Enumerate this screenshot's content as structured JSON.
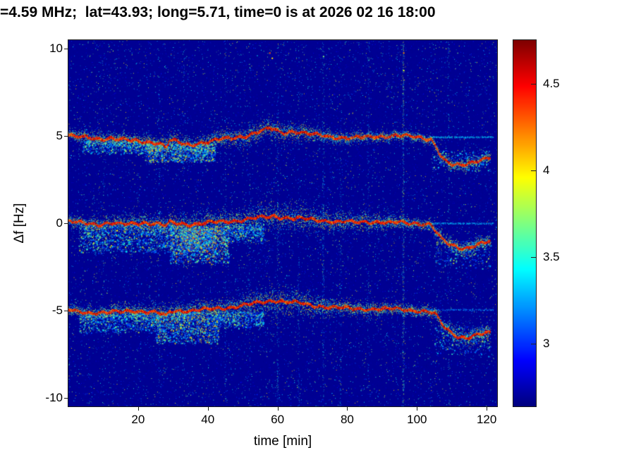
{
  "title": "=4.59 MHz;  lat=43.93; long=5.71, time=0 is at 2026 02 16 18:00",
  "chart_data": {
    "type": "heatmap",
    "subtype": "doppler-spectrogram",
    "colormap": "jet",
    "title": "=4.59 MHz;  lat=43.93; long=5.71, time=0 is at 2026 02 16 18:00",
    "xlabel": "time [min]",
    "ylabel": "Δf [Hz]",
    "xlim": [
      0,
      123
    ],
    "ylim": [
      -10.5,
      10.5
    ],
    "x_ticks": [
      20,
      40,
      60,
      80,
      100,
      120
    ],
    "y_ticks": [
      10,
      5,
      0,
      -5,
      -10
    ],
    "grid": false,
    "background_value": 2.68,
    "colorbar": {
      "colormap": "jet",
      "range": [
        2.64,
        4.75
      ],
      "ticks": [
        4.5,
        4,
        3.5,
        3
      ],
      "position": "right"
    },
    "traces": [
      {
        "name": "upper-doppler-trace",
        "points": [
          [
            0,
            5.05
          ],
          [
            3,
            4.95
          ],
          [
            6,
            4.9
          ],
          [
            9,
            4.85
          ],
          [
            12,
            4.9
          ],
          [
            15,
            4.8
          ],
          [
            18,
            4.75
          ],
          [
            21,
            4.7
          ],
          [
            24,
            4.65
          ],
          [
            26,
            4.6
          ],
          [
            28,
            4.35
          ],
          [
            29,
            4.75
          ],
          [
            31,
            4.7
          ],
          [
            33,
            4.55
          ],
          [
            35,
            4.5
          ],
          [
            37,
            4.6
          ],
          [
            39,
            4.65
          ],
          [
            41,
            4.7
          ],
          [
            44,
            4.85
          ],
          [
            47,
            4.9
          ],
          [
            50,
            5.0
          ],
          [
            53,
            5.15
          ],
          [
            56,
            5.35
          ],
          [
            58,
            5.45
          ],
          [
            60,
            5.3
          ],
          [
            62,
            5.2
          ],
          [
            64,
            5.3
          ],
          [
            66,
            5.25
          ],
          [
            68,
            5.15
          ],
          [
            70,
            5.1
          ],
          [
            73,
            5.05
          ],
          [
            76,
            4.95
          ],
          [
            79,
            4.9
          ],
          [
            82,
            4.9
          ],
          [
            85,
            4.95
          ],
          [
            88,
            5.0
          ],
          [
            91,
            5.0
          ],
          [
            94,
            5.05
          ],
          [
            97,
            5.0
          ],
          [
            100,
            4.95
          ],
          [
            102,
            4.9
          ],
          [
            104,
            4.85
          ],
          [
            105.5,
            4.4
          ],
          [
            107,
            3.8
          ],
          [
            108.5,
            3.5
          ],
          [
            110,
            3.35
          ],
          [
            112,
            3.3
          ],
          [
            114,
            3.4
          ],
          [
            116,
            3.55
          ],
          [
            118,
            3.65
          ],
          [
            120,
            3.75
          ],
          [
            121,
            3.8
          ]
        ],
        "spread": [
          [
            0,
            0.18
          ],
          [
            8,
            0.22
          ],
          [
            20,
            0.25
          ],
          [
            30,
            0.3
          ],
          [
            40,
            0.25
          ],
          [
            50,
            0.3
          ],
          [
            57,
            0.35
          ],
          [
            65,
            0.28
          ],
          [
            75,
            0.22
          ],
          [
            85,
            0.18
          ],
          [
            95,
            0.15
          ],
          [
            104,
            0.15
          ],
          [
            112,
            0.2
          ],
          [
            121,
            0.18
          ]
        ]
      },
      {
        "name": "carrier-doppler-trace",
        "points": [
          [
            0,
            0.1
          ],
          [
            3,
            0.05
          ],
          [
            6,
            0.0
          ],
          [
            9,
            -0.05
          ],
          [
            12,
            0.0
          ],
          [
            15,
            -0.05
          ],
          [
            18,
            0.0
          ],
          [
            21,
            0.05
          ],
          [
            24,
            0.0
          ],
          [
            26,
            -0.05
          ],
          [
            28,
            -0.15
          ],
          [
            29,
            0.05
          ],
          [
            32,
            0.0
          ],
          [
            35,
            -0.05
          ],
          [
            38,
            0.0
          ],
          [
            41,
            0.05
          ],
          [
            44,
            0.1
          ],
          [
            47,
            0.15
          ],
          [
            50,
            0.2
          ],
          [
            53,
            0.3
          ],
          [
            56,
            0.35
          ],
          [
            59,
            0.4
          ],
          [
            62,
            0.35
          ],
          [
            65,
            0.3
          ],
          [
            68,
            0.25
          ],
          [
            71,
            0.2
          ],
          [
            74,
            0.15
          ],
          [
            77,
            0.1
          ],
          [
            80,
            0.1
          ],
          [
            83,
            0.05
          ],
          [
            86,
            0.1
          ],
          [
            89,
            0.1
          ],
          [
            92,
            0.05
          ],
          [
            95,
            0.05
          ],
          [
            98,
            0.0
          ],
          [
            101,
            0.0
          ],
          [
            104,
            -0.05
          ],
          [
            105.5,
            -0.5
          ],
          [
            107,
            -0.9
          ],
          [
            109,
            -1.2
          ],
          [
            111,
            -1.35
          ],
          [
            113,
            -1.45
          ],
          [
            115,
            -1.35
          ],
          [
            117,
            -1.2
          ],
          [
            119,
            -1.1
          ],
          [
            121,
            -1.05
          ]
        ],
        "spread": [
          [
            0,
            0.15
          ],
          [
            8,
            0.25
          ],
          [
            20,
            0.3
          ],
          [
            33,
            0.4
          ],
          [
            45,
            0.35
          ],
          [
            52,
            0.45
          ],
          [
            58,
            0.5
          ],
          [
            64,
            0.5
          ],
          [
            70,
            0.42
          ],
          [
            78,
            0.35
          ],
          [
            86,
            0.3
          ],
          [
            94,
            0.22
          ],
          [
            101,
            0.18
          ],
          [
            106,
            0.25
          ],
          [
            114,
            0.25
          ],
          [
            121,
            0.22
          ]
        ]
      },
      {
        "name": "lower-doppler-trace",
        "points": [
          [
            0,
            -4.95
          ],
          [
            3,
            -5.05
          ],
          [
            6,
            -5.1
          ],
          [
            9,
            -5.15
          ],
          [
            12,
            -5.1
          ],
          [
            15,
            -5.05
          ],
          [
            18,
            -5.0
          ],
          [
            21,
            -5.05
          ],
          [
            24,
            -5.1
          ],
          [
            26,
            -5.15
          ],
          [
            28,
            -5.3
          ],
          [
            29,
            -5.05
          ],
          [
            32,
            -5.0
          ],
          [
            35,
            -5.0
          ],
          [
            38,
            -4.95
          ],
          [
            41,
            -4.9
          ],
          [
            44,
            -4.85
          ],
          [
            47,
            -4.8
          ],
          [
            50,
            -4.7
          ],
          [
            53,
            -4.6
          ],
          [
            56,
            -4.5
          ],
          [
            59,
            -4.4
          ],
          [
            61,
            -4.45
          ],
          [
            63,
            -4.5
          ],
          [
            65,
            -4.55
          ],
          [
            67,
            -4.6
          ],
          [
            70,
            -4.7
          ],
          [
            73,
            -4.75
          ],
          [
            76,
            -4.8
          ],
          [
            79,
            -4.85
          ],
          [
            82,
            -4.9
          ],
          [
            85,
            -4.9
          ],
          [
            88,
            -4.9
          ],
          [
            91,
            -4.9
          ],
          [
            94,
            -4.9
          ],
          [
            97,
            -4.95
          ],
          [
            100,
            -5.0
          ],
          [
            103,
            -5.05
          ],
          [
            105,
            -5.15
          ],
          [
            106.5,
            -5.6
          ],
          [
            108,
            -6.0
          ],
          [
            110,
            -6.3
          ],
          [
            112,
            -6.5
          ],
          [
            114,
            -6.55
          ],
          [
            116,
            -6.45
          ],
          [
            118,
            -6.35
          ],
          [
            120,
            -6.3
          ],
          [
            121,
            -6.3
          ]
        ],
        "spread": [
          [
            0,
            0.18
          ],
          [
            8,
            0.22
          ],
          [
            20,
            0.28
          ],
          [
            33,
            0.3
          ],
          [
            45,
            0.35
          ],
          [
            53,
            0.42
          ],
          [
            60,
            0.48
          ],
          [
            66,
            0.4
          ],
          [
            73,
            0.3
          ],
          [
            80,
            0.25
          ],
          [
            90,
            0.2
          ],
          [
            100,
            0.18
          ],
          [
            108,
            0.25
          ],
          [
            116,
            0.28
          ],
          [
            121,
            0.25
          ]
        ]
      }
    ],
    "clouds": [
      {
        "t": [
          4,
          24
        ],
        "f": [
          4.0,
          4.75
        ],
        "n": 700,
        "vmax": 3.9
      },
      {
        "t": [
          22,
          42
        ],
        "f": [
          3.5,
          4.6
        ],
        "n": 1500,
        "vmax": 4.2
      },
      {
        "t": [
          3,
          30
        ],
        "f": [
          -1.7,
          -0.05
        ],
        "n": 1600,
        "vmax": 4.0
      },
      {
        "t": [
          29,
          46
        ],
        "f": [
          -2.3,
          -0.1
        ],
        "n": 2200,
        "vmax": 4.35
      },
      {
        "t": [
          32,
          42
        ],
        "f": [
          -1.6,
          -0.3
        ],
        "n": 700,
        "vmax": 4.5
      },
      {
        "t": [
          46,
          56
        ],
        "f": [
          -1.1,
          -0.05
        ],
        "n": 500,
        "vmax": 3.9
      },
      {
        "t": [
          3,
          26
        ],
        "f": [
          -6.3,
          -5.15
        ],
        "n": 1000,
        "vmax": 3.9
      },
      {
        "t": [
          25,
          43
        ],
        "f": [
          -6.9,
          -5.05
        ],
        "n": 1700,
        "vmax": 4.25
      },
      {
        "t": [
          43,
          56
        ],
        "f": [
          -6.0,
          -5.05
        ],
        "n": 600,
        "vmax": 3.9
      },
      {
        "t": [
          104,
          121
        ],
        "f": [
          3.0,
          4.2
        ],
        "n": 250,
        "vmax": 3.8
      },
      {
        "t": [
          105,
          121
        ],
        "f": [
          -2.6,
          -1.0
        ],
        "n": 300,
        "vmax": 3.9
      },
      {
        "t": [
          105,
          121
        ],
        "f": [
          -7.6,
          -5.9
        ],
        "n": 350,
        "vmax": 3.9
      }
    ],
    "stripes": [
      {
        "t": 10,
        "s": 0.12
      },
      {
        "t": 26,
        "s": 0.15
      },
      {
        "t": 33,
        "s": 0.2
      },
      {
        "t": 45,
        "s": 0.25
      },
      {
        "t": 52,
        "s": 0.15
      },
      {
        "t": 60,
        "s": 0.3
      },
      {
        "t": 66,
        "s": 0.2
      },
      {
        "t": 73,
        "s": 0.45
      },
      {
        "t": 78,
        "s": 0.2
      },
      {
        "t": 86,
        "s": 0.25
      },
      {
        "t": 96,
        "s": 0.85
      },
      {
        "t": 109,
        "s": 0.2
      }
    ],
    "faint_lines": [
      {
        "f": 4.95,
        "t0": 103,
        "t1": 122,
        "val": 3.35,
        "n": 260
      },
      {
        "f": 0.0,
        "t0": 103,
        "t1": 122,
        "val": 3.3,
        "n": 260
      },
      {
        "f": -4.95,
        "t0": 103,
        "t1": 122,
        "val": 3.2,
        "n": 200
      }
    ],
    "specks": [
      {
        "t": 57.6,
        "f": 9.8,
        "val": 4.3
      },
      {
        "t": 58.3,
        "f": 9.5,
        "val": 4.0
      },
      {
        "t": 96,
        "f": 9.8,
        "val": 4.2
      },
      {
        "t": 96,
        "f": 8.8,
        "val": 3.9
      },
      {
        "t": 73,
        "f": 9.6,
        "val": 3.7
      }
    ]
  },
  "colors": {
    "figure_bg": "#ffffff",
    "text": "#000000"
  }
}
